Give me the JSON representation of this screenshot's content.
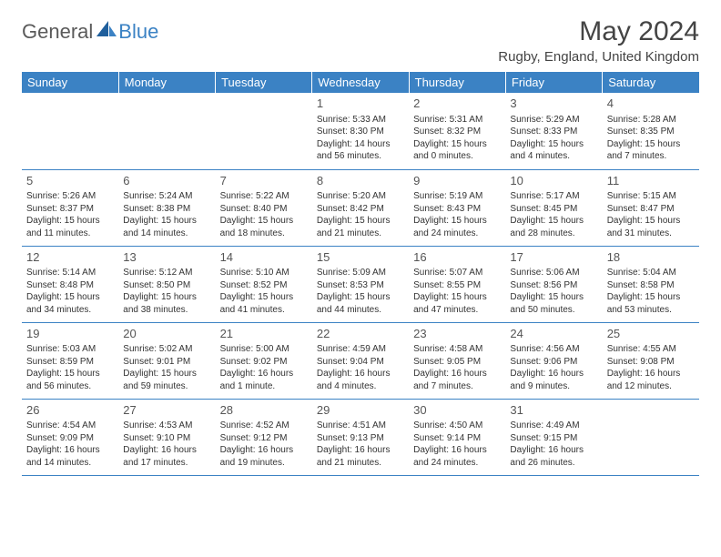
{
  "logo": {
    "part1": "General",
    "part2": "Blue"
  },
  "title": "May 2024",
  "location": "Rugby, England, United Kingdom",
  "colors": {
    "header_bg": "#3b82c4",
    "header_text": "#ffffff",
    "border": "#3b82c4",
    "text": "#333333",
    "title": "#444444"
  },
  "day_headers": [
    "Sunday",
    "Monday",
    "Tuesday",
    "Wednesday",
    "Thursday",
    "Friday",
    "Saturday"
  ],
  "weeks": [
    [
      null,
      null,
      null,
      {
        "n": "1",
        "sr": "Sunrise: 5:33 AM",
        "ss": "Sunset: 8:30 PM",
        "dl": "Daylight: 14 hours and 56 minutes."
      },
      {
        "n": "2",
        "sr": "Sunrise: 5:31 AM",
        "ss": "Sunset: 8:32 PM",
        "dl": "Daylight: 15 hours and 0 minutes."
      },
      {
        "n": "3",
        "sr": "Sunrise: 5:29 AM",
        "ss": "Sunset: 8:33 PM",
        "dl": "Daylight: 15 hours and 4 minutes."
      },
      {
        "n": "4",
        "sr": "Sunrise: 5:28 AM",
        "ss": "Sunset: 8:35 PM",
        "dl": "Daylight: 15 hours and 7 minutes."
      }
    ],
    [
      {
        "n": "5",
        "sr": "Sunrise: 5:26 AM",
        "ss": "Sunset: 8:37 PM",
        "dl": "Daylight: 15 hours and 11 minutes."
      },
      {
        "n": "6",
        "sr": "Sunrise: 5:24 AM",
        "ss": "Sunset: 8:38 PM",
        "dl": "Daylight: 15 hours and 14 minutes."
      },
      {
        "n": "7",
        "sr": "Sunrise: 5:22 AM",
        "ss": "Sunset: 8:40 PM",
        "dl": "Daylight: 15 hours and 18 minutes."
      },
      {
        "n": "8",
        "sr": "Sunrise: 5:20 AM",
        "ss": "Sunset: 8:42 PM",
        "dl": "Daylight: 15 hours and 21 minutes."
      },
      {
        "n": "9",
        "sr": "Sunrise: 5:19 AM",
        "ss": "Sunset: 8:43 PM",
        "dl": "Daylight: 15 hours and 24 minutes."
      },
      {
        "n": "10",
        "sr": "Sunrise: 5:17 AM",
        "ss": "Sunset: 8:45 PM",
        "dl": "Daylight: 15 hours and 28 minutes."
      },
      {
        "n": "11",
        "sr": "Sunrise: 5:15 AM",
        "ss": "Sunset: 8:47 PM",
        "dl": "Daylight: 15 hours and 31 minutes."
      }
    ],
    [
      {
        "n": "12",
        "sr": "Sunrise: 5:14 AM",
        "ss": "Sunset: 8:48 PM",
        "dl": "Daylight: 15 hours and 34 minutes."
      },
      {
        "n": "13",
        "sr": "Sunrise: 5:12 AM",
        "ss": "Sunset: 8:50 PM",
        "dl": "Daylight: 15 hours and 38 minutes."
      },
      {
        "n": "14",
        "sr": "Sunrise: 5:10 AM",
        "ss": "Sunset: 8:52 PM",
        "dl": "Daylight: 15 hours and 41 minutes."
      },
      {
        "n": "15",
        "sr": "Sunrise: 5:09 AM",
        "ss": "Sunset: 8:53 PM",
        "dl": "Daylight: 15 hours and 44 minutes."
      },
      {
        "n": "16",
        "sr": "Sunrise: 5:07 AM",
        "ss": "Sunset: 8:55 PM",
        "dl": "Daylight: 15 hours and 47 minutes."
      },
      {
        "n": "17",
        "sr": "Sunrise: 5:06 AM",
        "ss": "Sunset: 8:56 PM",
        "dl": "Daylight: 15 hours and 50 minutes."
      },
      {
        "n": "18",
        "sr": "Sunrise: 5:04 AM",
        "ss": "Sunset: 8:58 PM",
        "dl": "Daylight: 15 hours and 53 minutes."
      }
    ],
    [
      {
        "n": "19",
        "sr": "Sunrise: 5:03 AM",
        "ss": "Sunset: 8:59 PM",
        "dl": "Daylight: 15 hours and 56 minutes."
      },
      {
        "n": "20",
        "sr": "Sunrise: 5:02 AM",
        "ss": "Sunset: 9:01 PM",
        "dl": "Daylight: 15 hours and 59 minutes."
      },
      {
        "n": "21",
        "sr": "Sunrise: 5:00 AM",
        "ss": "Sunset: 9:02 PM",
        "dl": "Daylight: 16 hours and 1 minute."
      },
      {
        "n": "22",
        "sr": "Sunrise: 4:59 AM",
        "ss": "Sunset: 9:04 PM",
        "dl": "Daylight: 16 hours and 4 minutes."
      },
      {
        "n": "23",
        "sr": "Sunrise: 4:58 AM",
        "ss": "Sunset: 9:05 PM",
        "dl": "Daylight: 16 hours and 7 minutes."
      },
      {
        "n": "24",
        "sr": "Sunrise: 4:56 AM",
        "ss": "Sunset: 9:06 PM",
        "dl": "Daylight: 16 hours and 9 minutes."
      },
      {
        "n": "25",
        "sr": "Sunrise: 4:55 AM",
        "ss": "Sunset: 9:08 PM",
        "dl": "Daylight: 16 hours and 12 minutes."
      }
    ],
    [
      {
        "n": "26",
        "sr": "Sunrise: 4:54 AM",
        "ss": "Sunset: 9:09 PM",
        "dl": "Daylight: 16 hours and 14 minutes."
      },
      {
        "n": "27",
        "sr": "Sunrise: 4:53 AM",
        "ss": "Sunset: 9:10 PM",
        "dl": "Daylight: 16 hours and 17 minutes."
      },
      {
        "n": "28",
        "sr": "Sunrise: 4:52 AM",
        "ss": "Sunset: 9:12 PM",
        "dl": "Daylight: 16 hours and 19 minutes."
      },
      {
        "n": "29",
        "sr": "Sunrise: 4:51 AM",
        "ss": "Sunset: 9:13 PM",
        "dl": "Daylight: 16 hours and 21 minutes."
      },
      {
        "n": "30",
        "sr": "Sunrise: 4:50 AM",
        "ss": "Sunset: 9:14 PM",
        "dl": "Daylight: 16 hours and 24 minutes."
      },
      {
        "n": "31",
        "sr": "Sunrise: 4:49 AM",
        "ss": "Sunset: 9:15 PM",
        "dl": "Daylight: 16 hours and 26 minutes."
      },
      null
    ]
  ]
}
